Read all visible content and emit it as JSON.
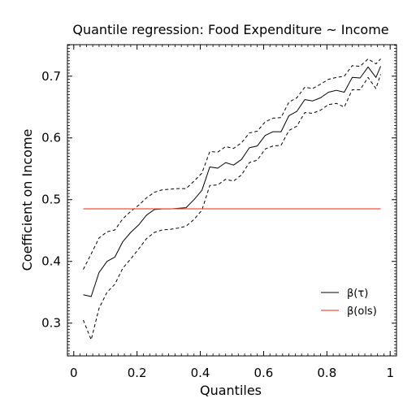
{
  "chart_data": {
    "type": "line",
    "title": "Quantile regression: Food Expenditure ~ Income",
    "xlabel": "Quantiles",
    "ylabel": "Coefficient on Income",
    "xlim": [
      -0.02,
      1.02
    ],
    "ylim": [
      0.247,
      0.751
    ],
    "xticks": [
      0,
      0.2,
      0.4,
      0.6,
      0.8,
      1
    ],
    "xtick_labels": [
      "0",
      "0.2",
      "0.4",
      "0.6",
      "0.8",
      "1"
    ],
    "yticks": [
      0.3,
      0.4,
      0.5,
      0.6,
      0.7
    ],
    "ytick_labels": [
      "0.3",
      "0.4",
      "0.5",
      "0.6",
      "0.7"
    ],
    "grid": false,
    "legend": {
      "position": "lower-right",
      "entries": [
        "β(τ)",
        "β(ols)"
      ]
    },
    "x": [
      0.03,
      0.055,
      0.08,
      0.105,
      0.13,
      0.155,
      0.18,
      0.205,
      0.23,
      0.255,
      0.28,
      0.305,
      0.33,
      0.355,
      0.38,
      0.405,
      0.43,
      0.455,
      0.48,
      0.505,
      0.53,
      0.555,
      0.58,
      0.605,
      0.63,
      0.655,
      0.68,
      0.705,
      0.73,
      0.755,
      0.78,
      0.805,
      0.83,
      0.855,
      0.88,
      0.905,
      0.93,
      0.955,
      0.97
    ],
    "series": [
      {
        "name": "β(τ)",
        "color": "#000000",
        "style": "solid",
        "values": [
          0.346,
          0.343,
          0.382,
          0.4,
          0.407,
          0.432,
          0.447,
          0.459,
          0.475,
          0.484,
          0.485,
          0.485,
          0.486,
          0.487,
          0.5,
          0.515,
          0.553,
          0.551,
          0.56,
          0.556,
          0.565,
          0.584,
          0.587,
          0.604,
          0.61,
          0.61,
          0.636,
          0.643,
          0.662,
          0.66,
          0.665,
          0.674,
          0.677,
          0.674,
          0.698,
          0.697,
          0.715,
          0.698,
          0.716
        ]
      },
      {
        "name": "upper bound",
        "color": "#000000",
        "style": "dashed",
        "values": [
          0.387,
          0.412,
          0.438,
          0.448,
          0.451,
          0.469,
          0.481,
          0.491,
          0.503,
          0.512,
          0.516,
          0.517,
          0.518,
          0.518,
          0.53,
          0.543,
          0.578,
          0.577,
          0.586,
          0.583,
          0.592,
          0.608,
          0.611,
          0.626,
          0.632,
          0.633,
          0.658,
          0.665,
          0.682,
          0.68,
          0.687,
          0.695,
          0.698,
          0.7,
          0.717,
          0.716,
          0.728,
          0.72,
          0.728
        ]
      },
      {
        "name": "lower bound",
        "color": "#000000",
        "style": "dashed",
        "values": [
          0.305,
          0.273,
          0.324,
          0.35,
          0.363,
          0.389,
          0.404,
          0.42,
          0.437,
          0.447,
          0.451,
          0.452,
          0.454,
          0.457,
          0.468,
          0.483,
          0.523,
          0.524,
          0.533,
          0.53,
          0.54,
          0.56,
          0.564,
          0.582,
          0.587,
          0.588,
          0.612,
          0.619,
          0.641,
          0.64,
          0.645,
          0.654,
          0.656,
          0.65,
          0.678,
          0.678,
          0.698,
          0.68,
          0.703
        ]
      },
      {
        "name": "β(ols)",
        "color": "#f04f46",
        "style": "solid",
        "x": [
          0.03,
          0.97
        ],
        "values": [
          0.4852,
          0.4852
        ]
      }
    ]
  }
}
